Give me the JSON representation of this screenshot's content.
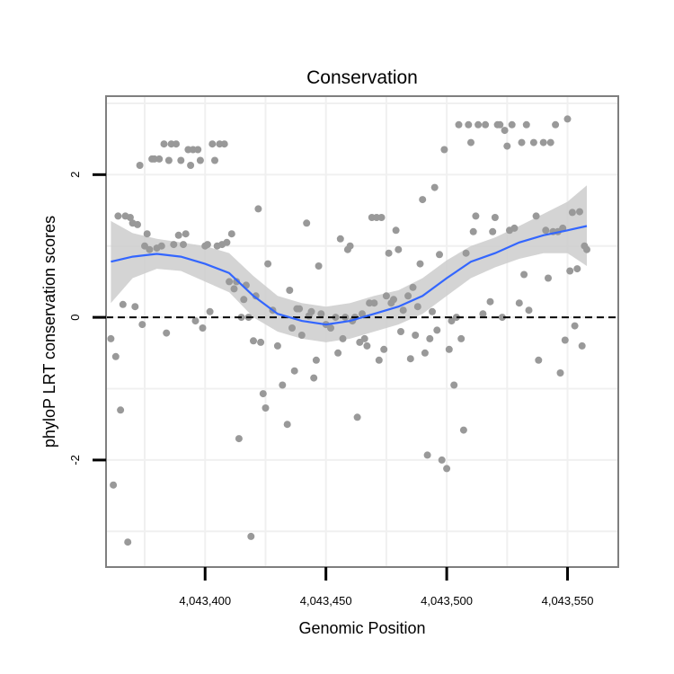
{
  "chart_data": {
    "type": "scatter",
    "title": "Conservation",
    "xlabel": "Genomic Position",
    "ylabel": "phyloP LRT conservation scores",
    "xlim": [
      4043359,
      4043571
    ],
    "ylim": [
      -3.5,
      3.1
    ],
    "x_ticks": [
      4043400,
      4043450,
      4043500,
      4043550
    ],
    "x_tick_labels": [
      "4,043,400",
      "4,043,450",
      "4,043,500",
      "4,043,550"
    ],
    "y_ticks": [
      2,
      0,
      -2
    ],
    "y_tick_labels": [
      "2",
      "0",
      "-2"
    ],
    "grid": true,
    "reference_line": {
      "y": 0,
      "style": "dashed"
    },
    "colors": {
      "points": "#999999",
      "smooth": "#3366ff",
      "band": "#cccccc",
      "grid": "#f0f0f0",
      "border": "#7f7f7f"
    },
    "points": [
      {
        "x": 4043361,
        "y": -0.3
      },
      {
        "x": 4043362,
        "y": -2.35
      },
      {
        "x": 4043363,
        "y": -0.55
      },
      {
        "x": 4043364,
        "y": 1.42
      },
      {
        "x": 4043365,
        "y": -1.3
      },
      {
        "x": 4043366,
        "y": 0.18
      },
      {
        "x": 4043367,
        "y": 1.42
      },
      {
        "x": 4043368,
        "y": -3.15
      },
      {
        "x": 4043369,
        "y": 1.4
      },
      {
        "x": 4043370,
        "y": 1.32
      },
      {
        "x": 4043371,
        "y": 0.15
      },
      {
        "x": 4043372,
        "y": 1.3
      },
      {
        "x": 4043373,
        "y": 2.13
      },
      {
        "x": 4043374,
        "y": -0.1
      },
      {
        "x": 4043375,
        "y": 1.0
      },
      {
        "x": 4043376,
        "y": 1.17
      },
      {
        "x": 4043377,
        "y": 0.95
      },
      {
        "x": 4043378,
        "y": 2.22
      },
      {
        "x": 4043379,
        "y": 2.22
      },
      {
        "x": 4043380,
        "y": 0.97
      },
      {
        "x": 4043381,
        "y": 2.22
      },
      {
        "x": 4043382,
        "y": 1.0
      },
      {
        "x": 4043383,
        "y": 2.43
      },
      {
        "x": 4043384,
        "y": -0.22
      },
      {
        "x": 4043385,
        "y": 2.2
      },
      {
        "x": 4043386,
        "y": 2.43
      },
      {
        "x": 4043387,
        "y": 1.02
      },
      {
        "x": 4043388,
        "y": 2.43
      },
      {
        "x": 4043389,
        "y": 1.15
      },
      {
        "x": 4043390,
        "y": 2.2
      },
      {
        "x": 4043391,
        "y": 1.02
      },
      {
        "x": 4043392,
        "y": 1.17
      },
      {
        "x": 4043393,
        "y": 2.35
      },
      {
        "x": 4043394,
        "y": 2.13
      },
      {
        "x": 4043395,
        "y": 2.35
      },
      {
        "x": 4043396,
        "y": -0.05
      },
      {
        "x": 4043397,
        "y": 2.35
      },
      {
        "x": 4043398,
        "y": 2.2
      },
      {
        "x": 4043399,
        "y": -0.15
      },
      {
        "x": 4043400,
        "y": 1.0
      },
      {
        "x": 4043401,
        "y": 1.02
      },
      {
        "x": 4043402,
        "y": 0.08
      },
      {
        "x": 4043403,
        "y": 2.43
      },
      {
        "x": 4043404,
        "y": 2.2
      },
      {
        "x": 4043405,
        "y": 1.0
      },
      {
        "x": 4043406,
        "y": 2.43
      },
      {
        "x": 4043407,
        "y": 1.02
      },
      {
        "x": 4043408,
        "y": 2.43
      },
      {
        "x": 4043409,
        "y": 1.05
      },
      {
        "x": 4043410,
        "y": 0.5
      },
      {
        "x": 4043411,
        "y": 1.17
      },
      {
        "x": 4043412,
        "y": 0.4
      },
      {
        "x": 4043413,
        "y": 0.5
      },
      {
        "x": 4043414,
        "y": -1.7
      },
      {
        "x": 4043415,
        "y": 0.0
      },
      {
        "x": 4043416,
        "y": 0.25
      },
      {
        "x": 4043417,
        "y": 0.45
      },
      {
        "x": 4043418,
        "y": 0.0
      },
      {
        "x": 4043419,
        "y": -3.07
      },
      {
        "x": 4043420,
        "y": -0.33
      },
      {
        "x": 4043421,
        "y": 0.3
      },
      {
        "x": 4043422,
        "y": 1.52
      },
      {
        "x": 4043423,
        "y": -0.35
      },
      {
        "x": 4043424,
        "y": -1.07
      },
      {
        "x": 4043425,
        "y": -1.27
      },
      {
        "x": 4043426,
        "y": 0.75
      },
      {
        "x": 4043428,
        "y": 0.1
      },
      {
        "x": 4043430,
        "y": -0.4
      },
      {
        "x": 4043432,
        "y": -0.95
      },
      {
        "x": 4043434,
        "y": -1.5
      },
      {
        "x": 4043435,
        "y": 0.38
      },
      {
        "x": 4043436,
        "y": -0.15
      },
      {
        "x": 4043437,
        "y": -0.75
      },
      {
        "x": 4043438,
        "y": 0.12
      },
      {
        "x": 4043439,
        "y": 0.12
      },
      {
        "x": 4043440,
        "y": -0.25
      },
      {
        "x": 4043442,
        "y": 1.32
      },
      {
        "x": 4043443,
        "y": 0.02
      },
      {
        "x": 4043444,
        "y": 0.08
      },
      {
        "x": 4043445,
        "y": -0.85
      },
      {
        "x": 4043446,
        "y": -0.6
      },
      {
        "x": 4043447,
        "y": 0.72
      },
      {
        "x": 4043448,
        "y": 0.05
      },
      {
        "x": 4043450,
        "y": -0.1
      },
      {
        "x": 4043452,
        "y": -0.15
      },
      {
        "x": 4043454,
        "y": 0.0
      },
      {
        "x": 4043455,
        "y": -0.5
      },
      {
        "x": 4043456,
        "y": 1.1
      },
      {
        "x": 4043457,
        "y": -0.3
      },
      {
        "x": 4043458,
        "y": 0.0
      },
      {
        "x": 4043459,
        "y": 0.95
      },
      {
        "x": 4043460,
        "y": 1.0
      },
      {
        "x": 4043461,
        "y": -0.05
      },
      {
        "x": 4043462,
        "y": 0.0
      },
      {
        "x": 4043463,
        "y": -1.4
      },
      {
        "x": 4043464,
        "y": -0.35
      },
      {
        "x": 4043465,
        "y": 0.05
      },
      {
        "x": 4043466,
        "y": -0.3
      },
      {
        "x": 4043467,
        "y": -0.4
      },
      {
        "x": 4043468,
        "y": 0.2
      },
      {
        "x": 4043469,
        "y": 1.4
      },
      {
        "x": 4043470,
        "y": 0.2
      },
      {
        "x": 4043471,
        "y": 1.4
      },
      {
        "x": 4043472,
        "y": -0.6
      },
      {
        "x": 4043473,
        "y": 1.4
      },
      {
        "x": 4043474,
        "y": -0.45
      },
      {
        "x": 4043475,
        "y": 0.3
      },
      {
        "x": 4043476,
        "y": 0.9
      },
      {
        "x": 4043477,
        "y": 0.2
      },
      {
        "x": 4043478,
        "y": 0.25
      },
      {
        "x": 4043479,
        "y": 1.22
      },
      {
        "x": 4043480,
        "y": 0.95
      },
      {
        "x": 4043481,
        "y": -0.2
      },
      {
        "x": 4043482,
        "y": 0.1
      },
      {
        "x": 4043484,
        "y": 0.3
      },
      {
        "x": 4043485,
        "y": -0.58
      },
      {
        "x": 4043486,
        "y": 0.42
      },
      {
        "x": 4043487,
        "y": -0.25
      },
      {
        "x": 4043488,
        "y": 0.15
      },
      {
        "x": 4043489,
        "y": 0.75
      },
      {
        "x": 4043490,
        "y": 1.65
      },
      {
        "x": 4043491,
        "y": -0.5
      },
      {
        "x": 4043492,
        "y": -1.93
      },
      {
        "x": 4043493,
        "y": -0.3
      },
      {
        "x": 4043494,
        "y": 0.08
      },
      {
        "x": 4043495,
        "y": 1.82
      },
      {
        "x": 4043496,
        "y": -0.18
      },
      {
        "x": 4043497,
        "y": 0.88
      },
      {
        "x": 4043498,
        "y": -2.0
      },
      {
        "x": 4043499,
        "y": 2.35
      },
      {
        "x": 4043500,
        "y": -2.12
      },
      {
        "x": 4043501,
        "y": -0.45
      },
      {
        "x": 4043502,
        "y": -0.05
      },
      {
        "x": 4043503,
        "y": -0.95
      },
      {
        "x": 4043504,
        "y": 0.0
      },
      {
        "x": 4043505,
        "y": 2.7
      },
      {
        "x": 4043506,
        "y": -0.3
      },
      {
        "x": 4043507,
        "y": -1.58
      },
      {
        "x": 4043508,
        "y": 0.9
      },
      {
        "x": 4043509,
        "y": 2.7
      },
      {
        "x": 4043510,
        "y": 2.45
      },
      {
        "x": 4043511,
        "y": 1.2
      },
      {
        "x": 4043512,
        "y": 1.42
      },
      {
        "x": 4043513,
        "y": 2.7
      },
      {
        "x": 4043515,
        "y": 0.05
      },
      {
        "x": 4043516,
        "y": 2.7
      },
      {
        "x": 4043518,
        "y": 0.22
      },
      {
        "x": 4043519,
        "y": 1.2
      },
      {
        "x": 4043520,
        "y": 1.4
      },
      {
        "x": 4043521,
        "y": 2.7
      },
      {
        "x": 4043522,
        "y": 2.7
      },
      {
        "x": 4043523,
        "y": 0.0
      },
      {
        "x": 4043524,
        "y": 2.62
      },
      {
        "x": 4043525,
        "y": 2.4
      },
      {
        "x": 4043526,
        "y": 1.22
      },
      {
        "x": 4043527,
        "y": 2.7
      },
      {
        "x": 4043528,
        "y": 1.25
      },
      {
        "x": 4043530,
        "y": 0.2
      },
      {
        "x": 4043531,
        "y": 2.45
      },
      {
        "x": 4043532,
        "y": 0.6
      },
      {
        "x": 4043533,
        "y": 2.7
      },
      {
        "x": 4043534,
        "y": 0.1
      },
      {
        "x": 4043536,
        "y": 2.45
      },
      {
        "x": 4043537,
        "y": 1.42
      },
      {
        "x": 4043538,
        "y": -0.6
      },
      {
        "x": 4043540,
        "y": 2.45
      },
      {
        "x": 4043541,
        "y": 1.22
      },
      {
        "x": 4043542,
        "y": 0.55
      },
      {
        "x": 4043543,
        "y": 2.45
      },
      {
        "x": 4043544,
        "y": 1.2
      },
      {
        "x": 4043545,
        "y": 2.7
      },
      {
        "x": 4043546,
        "y": 1.2
      },
      {
        "x": 4043547,
        "y": -0.78
      },
      {
        "x": 4043548,
        "y": 1.25
      },
      {
        "x": 4043549,
        "y": -0.32
      },
      {
        "x": 4043550,
        "y": 2.78
      },
      {
        "x": 4043551,
        "y": 0.65
      },
      {
        "x": 4043552,
        "y": 1.47
      },
      {
        "x": 4043553,
        "y": -0.12
      },
      {
        "x": 4043554,
        "y": 0.68
      },
      {
        "x": 4043555,
        "y": 1.48
      },
      {
        "x": 4043556,
        "y": -0.4
      },
      {
        "x": 4043557,
        "y": 1.0
      },
      {
        "x": 4043558,
        "y": 0.95
      }
    ],
    "smooth_line": {
      "x": [
        4043361,
        4043370,
        4043380,
        4043390,
        4043400,
        4043410,
        4043420,
        4043430,
        4043440,
        4043450,
        4043460,
        4043470,
        4043480,
        4043490,
        4043500,
        4043510,
        4043520,
        4043530,
        4043540,
        4043550,
        4043558
      ],
      "y": [
        0.78,
        0.85,
        0.89,
        0.85,
        0.75,
        0.62,
        0.3,
        0.05,
        -0.05,
        -0.1,
        -0.05,
        0.05,
        0.15,
        0.3,
        0.55,
        0.78,
        0.9,
        1.05,
        1.15,
        1.22,
        1.28
      ],
      "lower": [
        0.2,
        0.55,
        0.68,
        0.65,
        0.5,
        0.35,
        0.0,
        -0.2,
        -0.3,
        -0.35,
        -0.3,
        -0.2,
        -0.1,
        0.05,
        0.3,
        0.55,
        0.7,
        0.82,
        0.9,
        0.9,
        0.72
      ],
      "upper": [
        1.35,
        1.18,
        1.1,
        1.05,
        1.0,
        0.9,
        0.58,
        0.3,
        0.2,
        0.15,
        0.2,
        0.3,
        0.38,
        0.55,
        0.8,
        1.0,
        1.12,
        1.28,
        1.45,
        1.62,
        1.85
      ]
    }
  }
}
